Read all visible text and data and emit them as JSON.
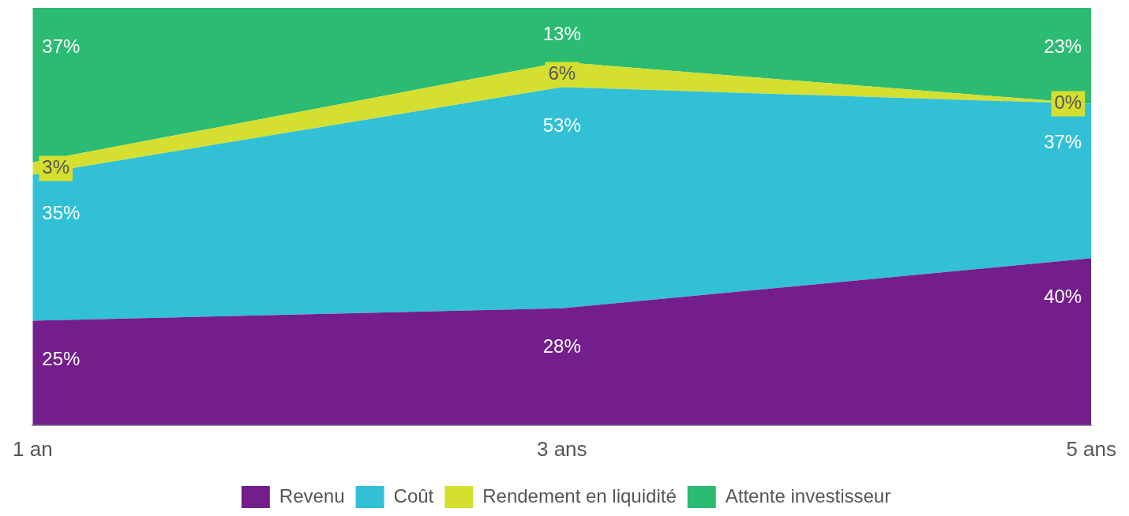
{
  "chart_data": {
    "type": "area",
    "stacked": true,
    "categories": [
      "1 an",
      "3 ans",
      "5 ans"
    ],
    "tick_labels": "x",
    "grid": false,
    "legend": "bottom",
    "series": [
      {
        "name": "Revenu",
        "color": "#731e8c",
        "values": [
          25,
          28,
          40
        ],
        "value_labels": [
          "25%",
          "28%",
          "40%"
        ]
      },
      {
        "name": "Coût",
        "color": "#31c0d6",
        "values": [
          35,
          53,
          37
        ],
        "value_labels": [
          "35%",
          "53%",
          "37%"
        ]
      },
      {
        "name": "Rendement en liquidité",
        "color": "#d4df2f",
        "values": [
          3,
          6,
          0
        ],
        "value_labels": [
          "3%",
          "6%",
          "0%"
        ]
      },
      {
        "name": "Attente investisseur",
        "color": "#2bbb73",
        "values": [
          37,
          13,
          23
        ],
        "value_labels": [
          "37%",
          "13%",
          "23%"
        ]
      }
    ]
  }
}
